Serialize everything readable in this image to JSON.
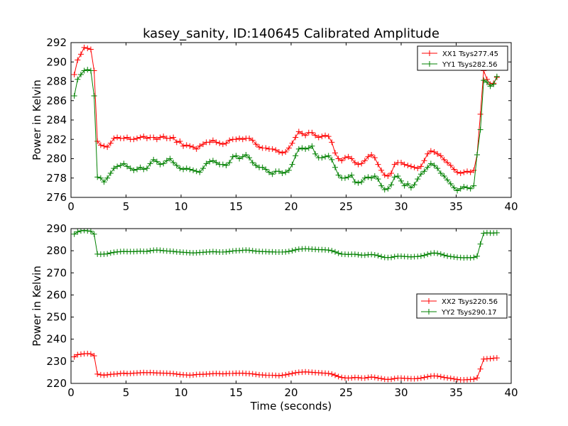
{
  "title": "kasey_sanity, ID:140645 Calibrated Amplitude",
  "colors": {
    "red": "#ff0000",
    "green": "#008000"
  },
  "chart_data": [
    {
      "type": "line",
      "title": "kasey_sanity, ID:140645 Calibrated Amplitude",
      "xlabel": "",
      "ylabel": "Power in Kelvin",
      "xlim": [
        0,
        40
      ],
      "ylim": [
        276,
        292
      ],
      "xticks": [
        "0",
        "5",
        "10",
        "15",
        "20",
        "25",
        "30",
        "35",
        "40"
      ],
      "yticks": [
        "276",
        "278",
        "280",
        "282",
        "284",
        "286",
        "288",
        "290",
        "292"
      ],
      "legend_position": "upper right",
      "grid": false,
      "x": [
        0.3,
        0.6,
        0.9,
        1.2,
        1.5,
        1.8,
        2.1,
        2.4,
        2.7,
        3.0,
        3.3,
        3.6,
        3.9,
        4.2,
        4.5,
        4.8,
        5.1,
        5.4,
        5.7,
        6.0,
        6.3,
        6.6,
        6.9,
        7.2,
        7.5,
        7.8,
        8.1,
        8.4,
        8.7,
        9.0,
        9.3,
        9.6,
        9.9,
        10.2,
        10.5,
        10.8,
        11.1,
        11.4,
        11.7,
        12.0,
        12.3,
        12.6,
        12.9,
        13.2,
        13.5,
        13.8,
        14.1,
        14.4,
        14.7,
        15.0,
        15.3,
        15.6,
        15.9,
        16.2,
        16.5,
        16.8,
        17.1,
        17.4,
        17.7,
        18.0,
        18.3,
        18.6,
        18.9,
        19.2,
        19.5,
        19.8,
        20.1,
        20.4,
        20.7,
        21.0,
        21.3,
        21.6,
        21.9,
        22.2,
        22.5,
        22.8,
        23.1,
        23.4,
        23.7,
        24.0,
        24.3,
        24.6,
        24.9,
        25.2,
        25.5,
        25.8,
        26.1,
        26.4,
        26.7,
        27.0,
        27.3,
        27.6,
        27.9,
        28.2,
        28.5,
        28.8,
        29.1,
        29.4,
        29.7,
        30.0,
        30.3,
        30.6,
        30.9,
        31.2,
        31.5,
        31.8,
        32.1,
        32.4,
        32.7,
        33.0,
        33.3,
        33.6,
        33.9,
        34.2,
        34.5,
        34.8,
        35.1,
        35.4,
        35.7,
        36.0,
        36.3,
        36.6,
        36.9,
        37.2,
        37.5,
        37.8,
        38.1,
        38.4,
        38.7
      ],
      "series": [
        {
          "name": "XX1 Tsys277.45",
          "color": "#ff0000",
          "values": [
            288.7,
            290.2,
            290.8,
            291.5,
            291.4,
            291.3,
            289.1,
            281.8,
            281.4,
            281.3,
            281.2,
            281.6,
            282.1,
            282.2,
            282.1,
            282.1,
            282.2,
            282.0,
            282.0,
            282.1,
            282.2,
            282.3,
            282.1,
            282.2,
            282.2,
            282.0,
            282.2,
            282.3,
            282.1,
            282.1,
            282.2,
            281.7,
            281.8,
            281.3,
            281.4,
            281.3,
            281.2,
            281.0,
            281.3,
            281.5,
            281.7,
            281.7,
            281.9,
            281.7,
            281.6,
            281.5,
            281.6,
            281.9,
            282.0,
            282.0,
            282.1,
            282.0,
            282.1,
            282.1,
            281.9,
            281.5,
            281.2,
            281.1,
            281.1,
            281.0,
            281.0,
            280.9,
            280.7,
            280.6,
            280.7,
            281.1,
            281.6,
            282.2,
            282.8,
            282.6,
            282.4,
            282.7,
            282.7,
            282.4,
            282.2,
            282.3,
            282.4,
            282.3,
            281.7,
            280.6,
            280.0,
            279.8,
            280.1,
            280.2,
            280.0,
            279.6,
            279.4,
            279.5,
            279.8,
            280.2,
            280.4,
            280.1,
            279.4,
            278.8,
            278.3,
            278.2,
            278.5,
            279.4,
            279.6,
            279.6,
            279.4,
            279.3,
            279.2,
            279.1,
            279.0,
            279.2,
            279.8,
            280.5,
            280.8,
            280.7,
            280.5,
            280.3,
            279.9,
            279.6,
            279.3,
            278.9,
            278.6,
            278.5,
            278.6,
            278.7,
            278.6,
            278.8,
            280.4,
            284.6,
            289.1,
            288.2,
            287.7,
            287.8,
            288.4
          ]
        },
        {
          "name": "YY1 Tsys282.56",
          "color": "#008000",
          "values": [
            286.5,
            288.2,
            288.7,
            289.1,
            289.2,
            289.1,
            286.5,
            278.1,
            278.0,
            277.6,
            278.0,
            278.5,
            279.0,
            279.2,
            279.3,
            279.5,
            279.2,
            279.0,
            278.8,
            278.9,
            279.1,
            278.9,
            279.0,
            279.5,
            279.9,
            279.7,
            279.4,
            279.5,
            279.8,
            280.0,
            279.6,
            279.3,
            279.0,
            278.9,
            279.0,
            278.9,
            278.8,
            278.7,
            278.6,
            279.0,
            279.5,
            279.7,
            279.8,
            279.6,
            279.4,
            279.4,
            279.3,
            279.6,
            280.2,
            280.3,
            280.0,
            280.2,
            280.4,
            280.1,
            279.6,
            279.3,
            279.1,
            279.1,
            278.9,
            278.6,
            278.4,
            278.7,
            278.7,
            278.5,
            278.6,
            278.8,
            279.4,
            280.3,
            281.0,
            281.1,
            281.0,
            281.1,
            281.3,
            280.5,
            280.1,
            280.1,
            280.2,
            280.3,
            279.9,
            279.1,
            278.3,
            278.0,
            278.0,
            278.1,
            278.3,
            277.6,
            277.5,
            277.6,
            278.0,
            278.1,
            278.0,
            278.2,
            277.9,
            277.2,
            276.8,
            276.9,
            277.3,
            278.1,
            278.2,
            277.7,
            277.2,
            277.4,
            277.0,
            277.3,
            277.9,
            278.4,
            278.7,
            279.1,
            279.5,
            279.3,
            279.0,
            278.5,
            278.2,
            277.8,
            277.4,
            277.0,
            276.7,
            276.9,
            277.1,
            277.0,
            276.9,
            277.2,
            280.4,
            283.0,
            288.1,
            287.9,
            287.5,
            287.7,
            288.5
          ]
        }
      ]
    },
    {
      "type": "line",
      "title": "",
      "xlabel": "Time (seconds)",
      "ylabel": "Power in Kelvin",
      "xlim": [
        0,
        40
      ],
      "ylim": [
        220,
        290
      ],
      "xticks": [
        "0",
        "5",
        "10",
        "15",
        "20",
        "25",
        "30",
        "35",
        "40"
      ],
      "yticks": [
        "220",
        "230",
        "240",
        "250",
        "260",
        "270",
        "280",
        "290"
      ],
      "legend_position": "center right",
      "grid": false,
      "x": [
        0.3,
        0.6,
        0.9,
        1.2,
        1.5,
        1.8,
        2.1,
        2.4,
        2.7,
        3.0,
        3.3,
        3.6,
        3.9,
        4.2,
        4.5,
        4.8,
        5.1,
        5.4,
        5.7,
        6.0,
        6.3,
        6.6,
        6.9,
        7.2,
        7.5,
        7.8,
        8.1,
        8.4,
        8.7,
        9.0,
        9.3,
        9.6,
        9.9,
        10.2,
        10.5,
        10.8,
        11.1,
        11.4,
        11.7,
        12.0,
        12.3,
        12.6,
        12.9,
        13.2,
        13.5,
        13.8,
        14.1,
        14.4,
        14.7,
        15.0,
        15.3,
        15.6,
        15.9,
        16.2,
        16.5,
        16.8,
        17.1,
        17.4,
        17.7,
        18.0,
        18.3,
        18.6,
        18.9,
        19.2,
        19.5,
        19.8,
        20.1,
        20.4,
        20.7,
        21.0,
        21.3,
        21.6,
        21.9,
        22.2,
        22.5,
        22.8,
        23.1,
        23.4,
        23.7,
        24.0,
        24.3,
        24.6,
        24.9,
        25.2,
        25.5,
        25.8,
        26.1,
        26.4,
        26.7,
        27.0,
        27.3,
        27.6,
        27.9,
        28.2,
        28.5,
        28.8,
        29.1,
        29.4,
        29.7,
        30.0,
        30.3,
        30.6,
        30.9,
        31.2,
        31.5,
        31.8,
        32.1,
        32.4,
        32.7,
        33.0,
        33.3,
        33.6,
        33.9,
        34.2,
        34.5,
        34.8,
        35.1,
        35.4,
        35.7,
        36.0,
        36.3,
        36.6,
        36.9,
        37.2,
        37.5,
        37.8,
        38.1,
        38.4,
        38.7
      ],
      "series": [
        {
          "name": "XX2 Tsys220.56",
          "color": "#ff0000",
          "values": [
            232.0,
            233.0,
            233.2,
            233.4,
            233.5,
            233.3,
            232.5,
            224.2,
            223.9,
            223.7,
            223.9,
            224.1,
            224.2,
            224.3,
            224.5,
            224.6,
            224.4,
            224.5,
            224.6,
            224.7,
            224.8,
            224.9,
            224.8,
            224.9,
            224.8,
            224.7,
            224.7,
            224.6,
            224.6,
            224.5,
            224.4,
            224.2,
            224.0,
            223.9,
            223.8,
            223.7,
            223.8,
            224.0,
            224.1,
            224.1,
            224.2,
            224.3,
            224.4,
            224.5,
            224.4,
            224.3,
            224.4,
            224.5,
            224.5,
            224.6,
            224.6,
            224.6,
            224.5,
            224.4,
            224.3,
            224.1,
            223.9,
            223.8,
            223.7,
            223.7,
            223.7,
            223.6,
            223.5,
            223.7,
            223.9,
            224.2,
            224.5,
            224.8,
            225.0,
            225.1,
            225.2,
            225.1,
            225.0,
            224.9,
            224.8,
            224.7,
            224.6,
            224.5,
            224.2,
            223.7,
            223.1,
            222.7,
            222.5,
            222.4,
            222.5,
            222.7,
            222.6,
            222.4,
            222.4,
            222.7,
            222.9,
            222.7,
            222.4,
            222.2,
            221.9,
            221.8,
            221.9,
            222.2,
            222.4,
            222.4,
            222.3,
            222.2,
            222.1,
            222.1,
            222.2,
            222.4,
            222.7,
            223.0,
            223.3,
            223.4,
            223.3,
            223.0,
            222.7,
            222.5,
            222.3,
            222.0,
            221.8,
            221.6,
            221.6,
            221.7,
            221.8,
            221.9,
            222.5,
            226.5,
            231.0,
            231.1,
            231.2,
            231.4,
            231.5
          ]
        },
        {
          "name": "YY2 Tsys290.17",
          "color": "#008000",
          "values": [
            287.5,
            288.5,
            289.0,
            289.2,
            289.0,
            288.8,
            287.5,
            278.5,
            278.4,
            278.5,
            278.6,
            279.0,
            279.3,
            279.5,
            279.6,
            279.7,
            279.6,
            279.6,
            279.6,
            279.7,
            279.8,
            279.7,
            279.7,
            280.0,
            280.2,
            280.3,
            280.2,
            280.0,
            279.9,
            279.8,
            279.7,
            279.5,
            279.4,
            279.3,
            279.2,
            279.1,
            279.0,
            279.1,
            279.2,
            279.3,
            279.4,
            279.5,
            279.6,
            279.5,
            279.4,
            279.4,
            279.5,
            279.7,
            279.9,
            280.0,
            280.1,
            280.2,
            280.3,
            280.2,
            280.0,
            279.8,
            279.7,
            279.6,
            279.6,
            279.5,
            279.5,
            279.4,
            279.4,
            279.4,
            279.5,
            279.7,
            280.0,
            280.4,
            280.7,
            280.8,
            280.9,
            280.8,
            280.7,
            280.6,
            280.5,
            280.5,
            280.4,
            280.3,
            280.0,
            279.5,
            278.9,
            278.5,
            278.4,
            278.3,
            278.4,
            278.4,
            278.2,
            278.0,
            278.0,
            278.2,
            278.3,
            278.1,
            277.8,
            277.3,
            277.0,
            276.9,
            277.0,
            277.3,
            277.5,
            277.5,
            277.4,
            277.3,
            277.2,
            277.3,
            277.4,
            277.6,
            277.9,
            278.4,
            278.8,
            279.0,
            278.8,
            278.5,
            278.0,
            277.6,
            277.4,
            277.2,
            277.0,
            276.9,
            276.8,
            276.9,
            276.8,
            277.0,
            277.5,
            283.0,
            287.9,
            288.1,
            288.0,
            288.0,
            288.1
          ]
        }
      ]
    }
  ]
}
